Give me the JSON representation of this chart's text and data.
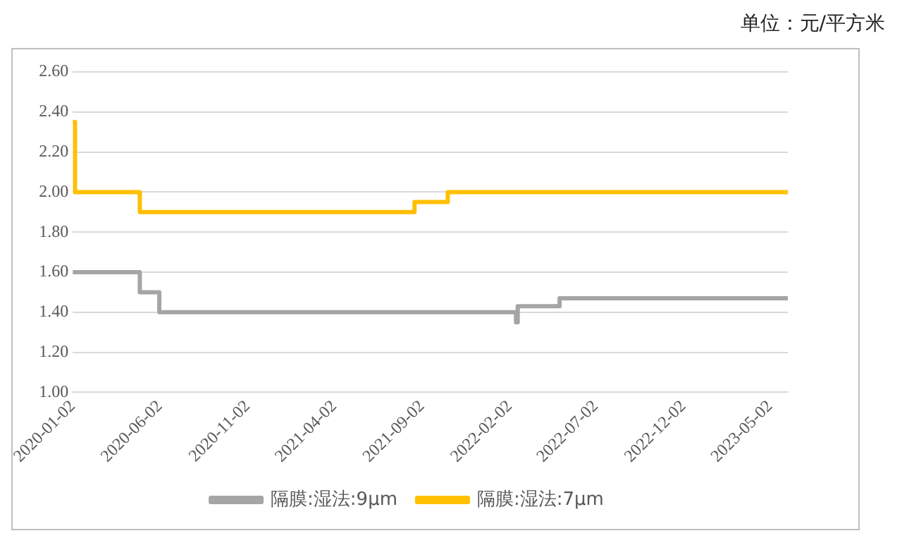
{
  "chart_data": {
    "type": "step",
    "annotations": [
      "单位：元/平方米"
    ],
    "xlim": [
      "2020-01-02",
      "2023-06-02"
    ],
    "xticks": [
      "2020-01-02",
      "2020-06-02",
      "2020-11-02",
      "2021-04-02",
      "2021-09-02",
      "2022-02-02",
      "2022-07-02",
      "2022-12-02",
      "2023-05-02"
    ],
    "ylim": [
      1.0,
      2.6
    ],
    "yticks": [
      {
        "value": 1.0,
        "label": "1.00"
      },
      {
        "value": 1.2,
        "label": "1.20"
      },
      {
        "value": 1.4,
        "label": "1.40"
      },
      {
        "value": 1.6,
        "label": "1.60"
      },
      {
        "value": 1.8,
        "label": "1.80"
      },
      {
        "value": 2.0,
        "label": "2.00"
      },
      {
        "value": 2.2,
        "label": "2.20"
      },
      {
        "value": 2.4,
        "label": "2.40"
      },
      {
        "value": 2.6,
        "label": "2.60"
      }
    ],
    "grid": "y",
    "legend": "bottom",
    "marker": "none",
    "series": [
      {
        "name": "隔膜:湿法:9μm",
        "color": "#a5a5a5",
        "x": [
          "2020-01-02",
          "2020-04-28",
          "2020-06-01",
          "2022-02-13",
          "2022-02-16",
          "2022-04-30",
          "2023-06-02"
        ],
        "values": [
          1.6,
          1.5,
          1.4,
          1.35,
          1.43,
          1.47,
          1.47
        ]
      },
      {
        "name": "隔膜:湿法:7μm",
        "color": "#ffc000",
        "x": [
          "2020-01-02",
          "2020-01-06",
          "2020-04-28",
          "2021-08-20",
          "2021-10-17",
          "2023-06-02"
        ],
        "values": [
          2.35,
          2.0,
          1.9,
          1.95,
          2.0,
          2.0
        ]
      }
    ]
  }
}
